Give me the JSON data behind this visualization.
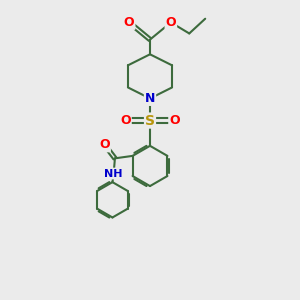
{
  "bg_color": "#ebebeb",
  "bond_color": "#3d6b3d",
  "bond_width": 1.5,
  "atom_colors": {
    "O": "#ff0000",
    "N": "#0000cc",
    "S": "#b8960c",
    "C": "#3d6b3d",
    "H": "#3d6b3d"
  },
  "figsize": [
    3.0,
    3.0
  ],
  "dpi": 100
}
